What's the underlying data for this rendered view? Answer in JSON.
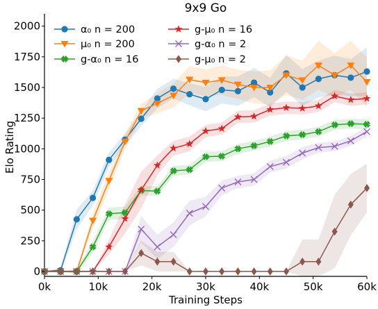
{
  "chart_data": {
    "type": "line",
    "title": "9x9 Go",
    "xlabel": "Training Steps",
    "ylabel": "Elo Rating",
    "xlim": [
      0,
      60000
    ],
    "ylim": [
      -40,
      2100
    ],
    "x_ticks": [
      0,
      10000,
      20000,
      30000,
      40000,
      50000,
      60000
    ],
    "x_tick_labels": [
      "0k",
      "10k",
      "20k",
      "30k",
      "40k",
      "50k",
      "60k"
    ],
    "y_ticks": [
      0,
      250,
      500,
      750,
      1000,
      1250,
      1500,
      1750,
      2000
    ],
    "y_tick_labels": [
      "0",
      "250",
      "500",
      "750",
      "1000",
      "1250",
      "1500",
      "1750",
      "2000"
    ],
    "grid": false,
    "legend_position": "top-left, two columns",
    "series": [
      {
        "name": "α₀ n = 200",
        "color": "#1f77b4",
        "marker": "circle",
        "x": [
          0,
          3000,
          6000,
          9000,
          12000,
          15000,
          18000,
          21000,
          24000,
          27000,
          30000,
          33000,
          36000,
          39000,
          42000,
          45000,
          48000,
          51000,
          54000,
          57000,
          60000
        ],
        "y": [
          0,
          10,
          425,
          600,
          910,
          1075,
          1245,
          1410,
          1490,
          1445,
          1405,
          1480,
          1470,
          1540,
          1460,
          1615,
          1500,
          1570,
          1600,
          1580,
          1630
        ],
        "band": [
          0,
          20,
          80,
          60,
          60,
          50,
          60,
          80,
          80,
          90,
          100,
          110,
          120,
          120,
          120,
          150,
          150,
          150,
          160,
          150,
          200
        ]
      },
      {
        "name": "μ₀ n = 200",
        "color": "#ff7f0e",
        "marker": "triangle-down",
        "x": [
          0,
          3000,
          6000,
          9000,
          12000,
          15000,
          18000,
          21000,
          24000,
          27000,
          30000,
          33000,
          36000,
          39000,
          42000,
          45000,
          48000,
          51000,
          54000,
          57000,
          60000
        ],
        "y": [
          0,
          0,
          0,
          415,
          740,
          1060,
          1310,
          1370,
          1435,
          1565,
          1540,
          1560,
          1525,
          1500,
          1500,
          1600,
          1560,
          1680,
          1600,
          1680,
          1545
        ],
        "band": [
          0,
          0,
          20,
          60,
          70,
          60,
          60,
          80,
          100,
          110,
          110,
          120,
          120,
          130,
          140,
          160,
          160,
          200,
          180,
          200,
          200
        ]
      },
      {
        "name": "g-α₀ n = 16",
        "color": "#2ca02c",
        "marker": "x-filled",
        "x": [
          0,
          3000,
          6000,
          9000,
          12000,
          15000,
          18000,
          21000,
          24000,
          27000,
          30000,
          33000,
          36000,
          39000,
          42000,
          45000,
          48000,
          51000,
          54000,
          57000,
          60000
        ],
        "y": [
          0,
          0,
          0,
          200,
          470,
          480,
          660,
          655,
          820,
          830,
          935,
          940,
          1000,
          1025,
          1060,
          1105,
          1115,
          1140,
          1195,
          1205,
          1200
        ],
        "band": [
          0,
          0,
          20,
          50,
          50,
          50,
          40,
          40,
          40,
          40,
          40,
          40,
          40,
          40,
          40,
          40,
          40,
          40,
          40,
          40,
          40
        ]
      },
      {
        "name": "g-μ₀ n = 16",
        "color": "#d62728",
        "marker": "star",
        "x": [
          0,
          3000,
          6000,
          9000,
          12000,
          15000,
          18000,
          21000,
          24000,
          27000,
          30000,
          33000,
          36000,
          39000,
          42000,
          45000,
          48000,
          51000,
          54000,
          57000,
          60000
        ],
        "y": [
          0,
          0,
          0,
          0,
          200,
          430,
          665,
          865,
          1005,
          1040,
          1145,
          1165,
          1260,
          1265,
          1320,
          1335,
          1330,
          1350,
          1430,
          1400,
          1410
        ],
        "band": [
          0,
          0,
          0,
          0,
          60,
          120,
          150,
          80,
          60,
          60,
          50,
          50,
          50,
          50,
          50,
          50,
          50,
          50,
          50,
          50,
          50
        ]
      },
      {
        "name": "g-α₀ n = 2",
        "color": "#9467bd",
        "marker": "x",
        "x": [
          0,
          3000,
          6000,
          9000,
          12000,
          15000,
          18000,
          21000,
          24000,
          27000,
          30000,
          33000,
          36000,
          39000,
          42000,
          45000,
          48000,
          51000,
          54000,
          57000,
          60000
        ],
        "y": [
          0,
          0,
          0,
          0,
          0,
          0,
          345,
          200,
          300,
          475,
          530,
          680,
          730,
          750,
          855,
          890,
          965,
          1010,
          1020,
          1065,
          1140
        ],
        "band": [
          0,
          0,
          0,
          0,
          0,
          0,
          110,
          100,
          100,
          100,
          80,
          60,
          50,
          50,
          50,
          50,
          50,
          40,
          40,
          40,
          40
        ]
      },
      {
        "name": "g-μ₀ n = 2",
        "color": "#8c564b",
        "marker": "diamond",
        "x": [
          0,
          3000,
          6000,
          9000,
          12000,
          15000,
          18000,
          21000,
          24000,
          27000,
          30000,
          33000,
          36000,
          39000,
          42000,
          45000,
          48000,
          51000,
          54000,
          57000,
          60000
        ],
        "y": [
          0,
          0,
          0,
          0,
          0,
          0,
          150,
          80,
          80,
          0,
          0,
          0,
          0,
          0,
          0,
          0,
          80,
          80,
          325,
          545,
          680
        ],
        "band": [
          0,
          0,
          0,
          0,
          0,
          0,
          100,
          80,
          80,
          0,
          0,
          0,
          0,
          0,
          0,
          0,
          180,
          180,
          300,
          250,
          200
        ]
      }
    ]
  }
}
